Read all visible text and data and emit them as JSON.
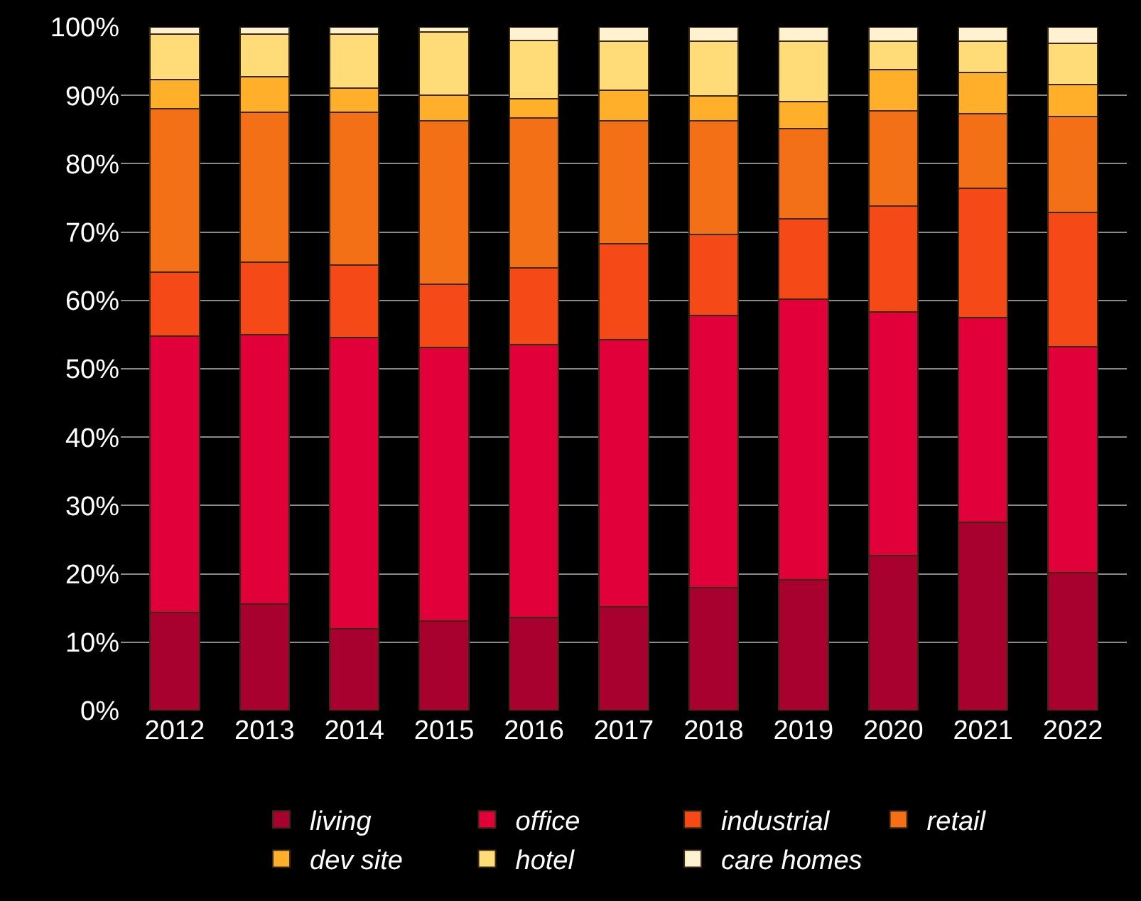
{
  "chart_data": {
    "type": "bar",
    "stacked": true,
    "categories": [
      "2012",
      "2013",
      "2014",
      "2015",
      "2016",
      "2017",
      "2018",
      "2019",
      "2020",
      "2021",
      "2022"
    ],
    "series": [
      {
        "name": "living",
        "color": "#a8002f",
        "values": [
          14.3,
          15.6,
          12.0,
          13.1,
          13.6,
          15.2,
          18.0,
          19.1,
          22.7,
          27.5,
          20.2
        ]
      },
      {
        "name": "office",
        "color": "#e2003a",
        "values": [
          40.5,
          39.4,
          42.6,
          40.0,
          39.9,
          39.1,
          39.8,
          41.1,
          35.6,
          30.0,
          33.0
        ]
      },
      {
        "name": "industrial",
        "color": "#f54a17",
        "values": [
          9.3,
          10.6,
          10.6,
          9.3,
          11.3,
          14.0,
          11.8,
          11.7,
          15.5,
          18.9,
          19.7
        ]
      },
      {
        "name": "retail",
        "color": "#f47016",
        "values": [
          23.9,
          21.9,
          22.3,
          23.9,
          21.9,
          18.0,
          16.7,
          13.2,
          13.9,
          10.9,
          14.0
        ]
      },
      {
        "name": "dev site",
        "color": "#ffaf2a",
        "values": [
          4.3,
          5.2,
          3.6,
          3.7,
          2.8,
          4.4,
          3.6,
          4.0,
          6.1,
          6.1,
          4.7
        ]
      },
      {
        "name": "hotel",
        "color": "#ffdc78",
        "values": [
          6.7,
          6.3,
          7.9,
          9.3,
          8.5,
          7.2,
          8.0,
          8.8,
          4.1,
          4.5,
          6.0
        ]
      },
      {
        "name": "care homes",
        "color": "#fff2d0",
        "values": [
          1.0,
          1.0,
          1.0,
          0.7,
          2.0,
          2.1,
          2.1,
          2.1,
          2.1,
          2.1,
          2.4
        ]
      }
    ],
    "ylim": [
      0,
      100
    ],
    "yticks": [
      {
        "value": 0,
        "label": "0%"
      },
      {
        "value": 10,
        "label": "10%"
      },
      {
        "value": 20,
        "label": "20%"
      },
      {
        "value": 30,
        "label": "30%"
      },
      {
        "value": 40,
        "label": "40%"
      },
      {
        "value": 50,
        "label": "50%"
      },
      {
        "value": 60,
        "label": "60%"
      },
      {
        "value": 70,
        "label": "70%"
      },
      {
        "value": 80,
        "label": "80%"
      },
      {
        "value": 90,
        "label": "90%"
      },
      {
        "value": 100,
        "label": "100%"
      }
    ],
    "grid": "y",
    "legend": "bottom"
  }
}
